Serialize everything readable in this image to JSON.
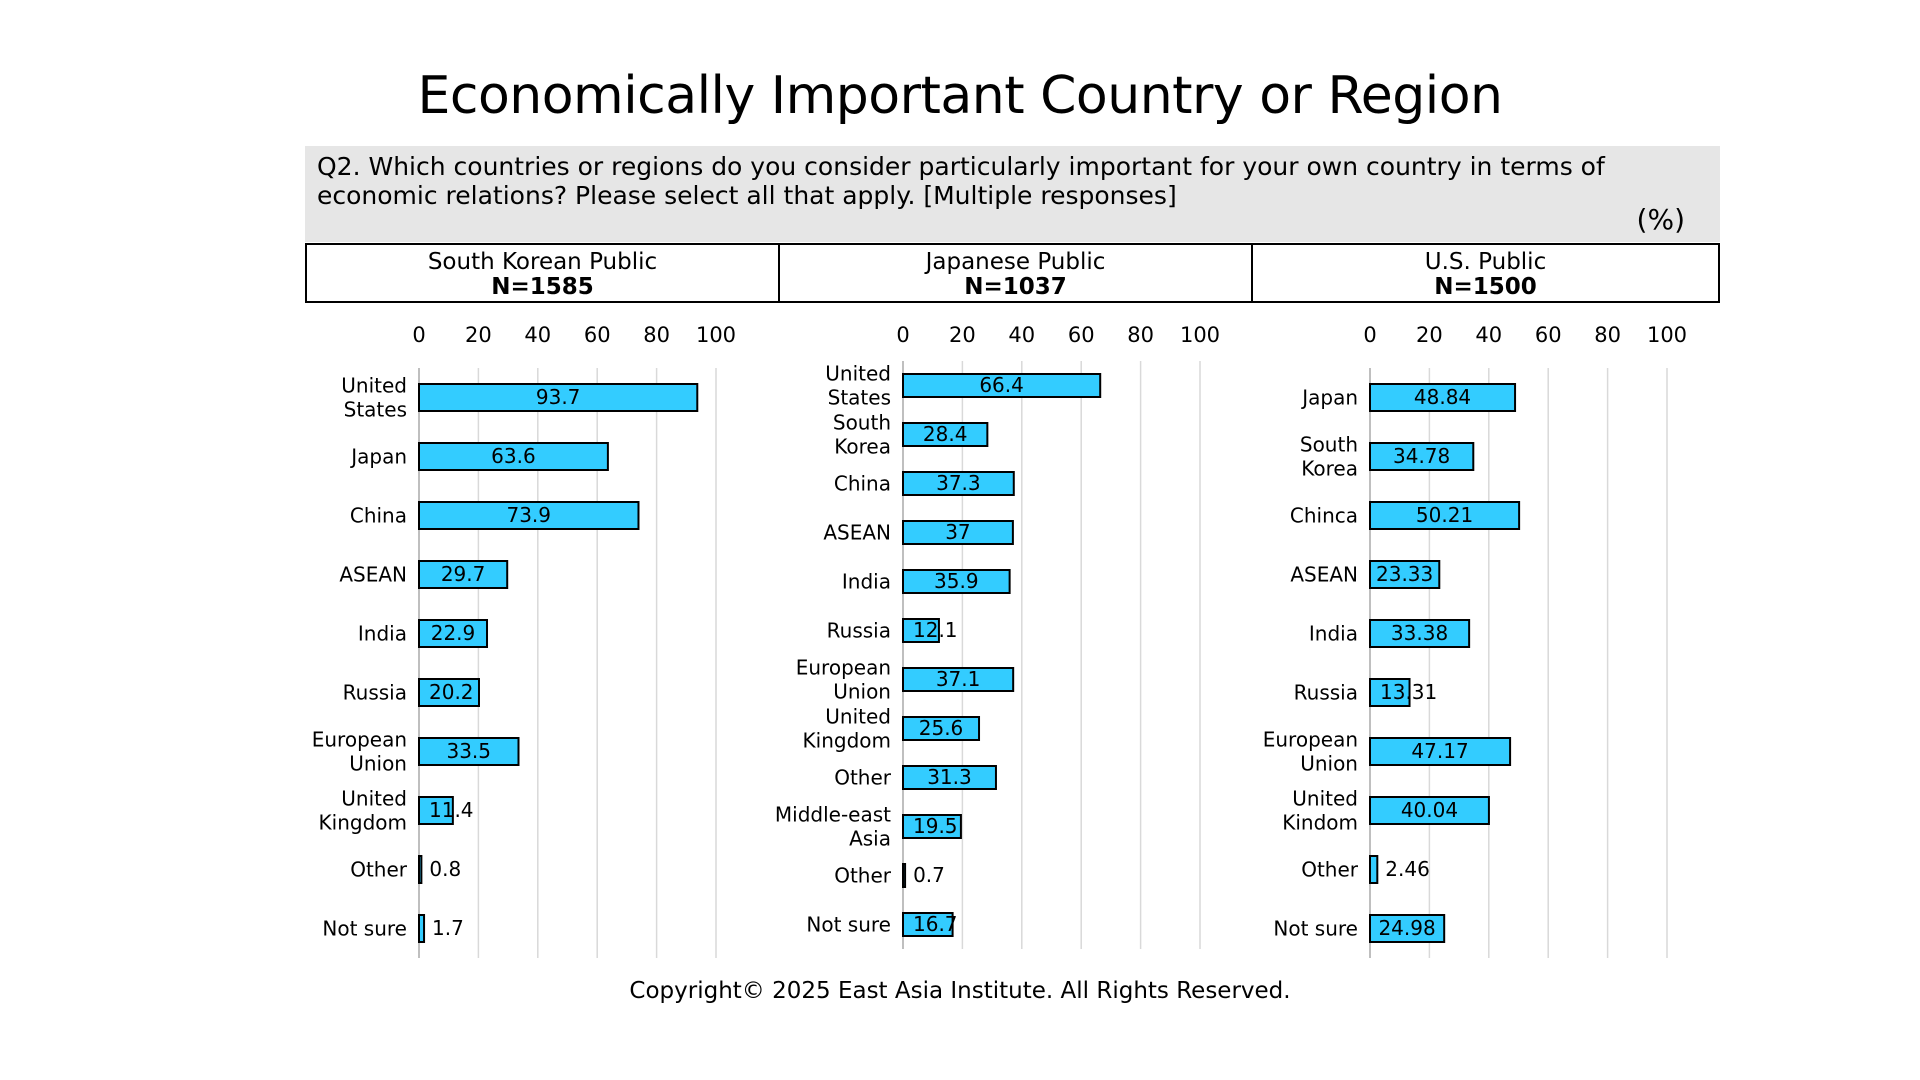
{
  "title": "Economically Important Country or Region",
  "question": "Q2. Which countries or regions do you consider particularly important for your own country in terms of economic relations? Please select all that apply. [Multiple responses]",
  "unit": "(%)",
  "copyright": "Copyright© 2025 East Asia Institute. All Rights Reserved.",
  "colors": {
    "bar": "#33ccff",
    "bar_border": "#000000",
    "grid": "#d9d9d9"
  },
  "chart_data": [
    {
      "type": "bar",
      "orientation": "horizontal",
      "group": "South Korean Public",
      "n": "N=1585",
      "xlim": [
        0,
        100
      ],
      "xticks": [
        "0",
        "20",
        "40",
        "60",
        "80",
        "100"
      ],
      "categories": [
        "United States",
        "Japan",
        "China",
        "ASEAN",
        "India",
        "Russia",
        "European Union",
        "United Kingdom",
        "Other",
        "Not sure"
      ],
      "labels": [
        "93.7",
        "63.6",
        "73.9",
        "29.7",
        "22.9",
        "20.2",
        "33.5",
        "11.4",
        "0.8",
        "1.7"
      ],
      "values": [
        93.7,
        63.6,
        73.9,
        29.7,
        22.9,
        20.2,
        33.5,
        11.4,
        0.8,
        1.7
      ]
    },
    {
      "type": "bar",
      "orientation": "horizontal",
      "group": "Japanese Public",
      "n": "N=1037",
      "xlim": [
        0,
        100
      ],
      "xticks": [
        "0",
        "20",
        "40",
        "60",
        "80",
        "100"
      ],
      "categories": [
        "United States",
        "South Korea",
        "China",
        "ASEAN",
        "India",
        "Russia",
        "European Union",
        "United Kingdom",
        "Other",
        "Middle-east Asia",
        "Other",
        "Not sure"
      ],
      "labels": [
        "66.4",
        "28.4",
        "37.3",
        "37",
        "35.9",
        "12.1",
        "37.1",
        "25.6",
        "31.3",
        "19.5",
        "0.7",
        "16.7"
      ],
      "values": [
        66.4,
        28.4,
        37.3,
        37,
        35.9,
        12.1,
        37.1,
        25.6,
        31.3,
        19.5,
        0.7,
        16.7
      ]
    },
    {
      "type": "bar",
      "orientation": "horizontal",
      "group": "U.S. Public",
      "n": "N=1500",
      "xlim": [
        0,
        100
      ],
      "xticks": [
        "0",
        "20",
        "40",
        "60",
        "80",
        "100"
      ],
      "categories": [
        "Japan",
        "South Korea",
        "Chinca",
        "ASEAN",
        "India",
        "Russia",
        "European Union",
        "United Kindom",
        "Other",
        "Not sure"
      ],
      "labels": [
        "48.84",
        "34.78",
        "50.21",
        "23.33",
        "33.38",
        "13.31",
        "47.17",
        "40.04",
        "2.46",
        "24.98"
      ],
      "values": [
        48.84,
        34.78,
        50.21,
        23.33,
        33.38,
        13.31,
        47.17,
        40.04,
        2.46,
        24.98
      ]
    }
  ]
}
